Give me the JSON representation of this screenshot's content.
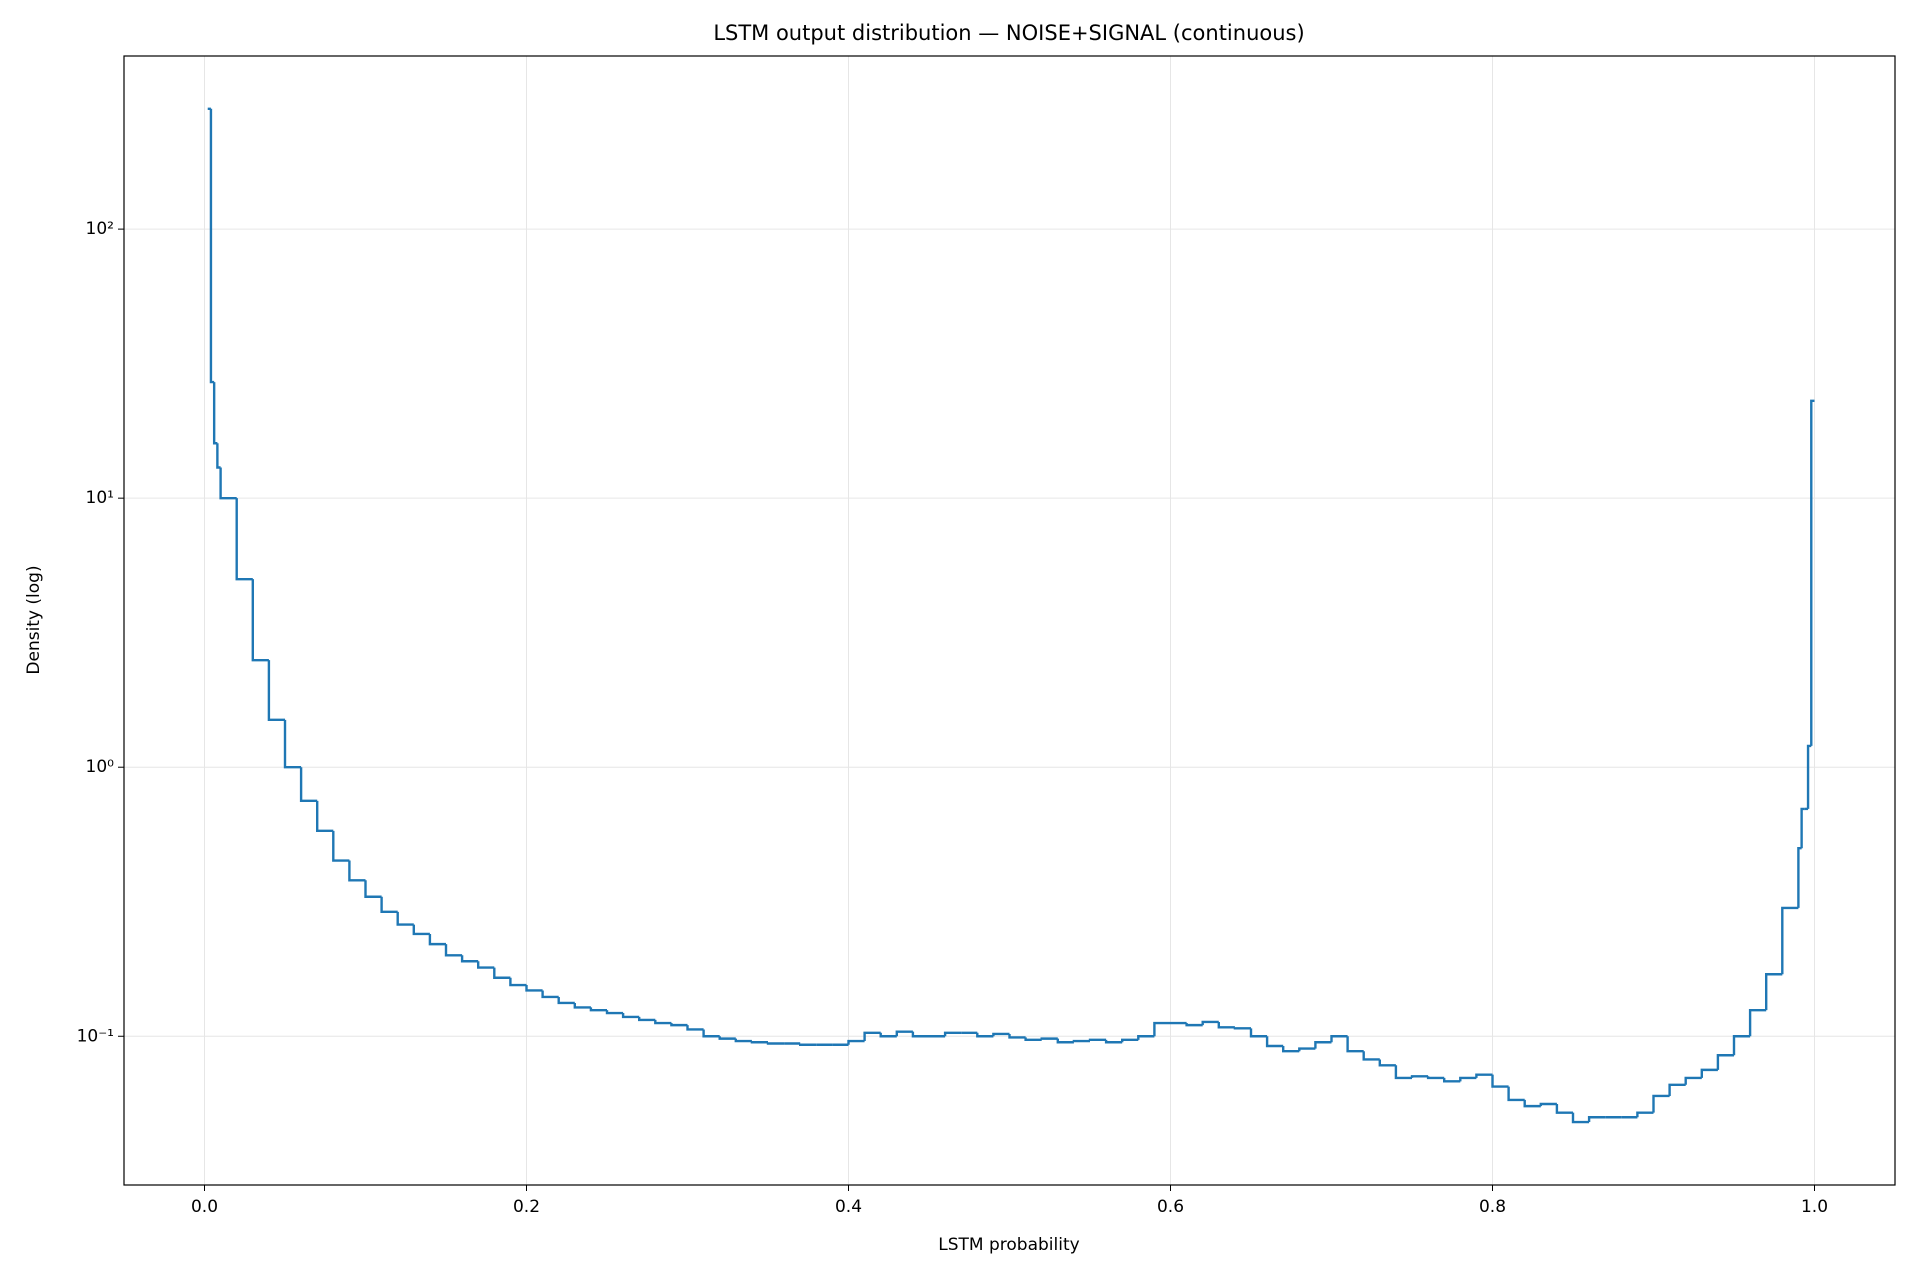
{
  "chart_data": {
    "type": "histogram",
    "histtype": "step",
    "title": "LSTM output distribution — NOISE+SIGNAL (continuous)",
    "x_label": "LSTM probability",
    "y_label": "Density (log)",
    "color": "#1f77b4",
    "y_scale": "log",
    "grid": true,
    "xlim": [
      -0.05,
      1.05
    ],
    "ylim": [
      0.028,
      440
    ],
    "xticks": [
      {
        "value": 0,
        "label": "0.0"
      },
      0.2,
      0.4,
      0.6,
      0.8,
      {
        "value": 1,
        "label": "1.0"
      }
    ],
    "yticks": [
      {
        "value": 0.1,
        "label": "10⁻¹"
      },
      {
        "value": 1,
        "label": "10⁰"
      },
      {
        "value": 10,
        "label": "10¹"
      },
      {
        "value": 100,
        "label": "10²"
      }
    ],
    "bins": [
      0.002,
      0.004,
      0.006,
      0.008,
      0.01,
      0.02,
      0.03,
      0.04,
      0.05,
      0.06,
      0.07,
      0.08,
      0.09,
      0.1,
      0.11,
      0.12,
      0.13,
      0.14,
      0.15,
      0.16,
      0.17,
      0.18,
      0.19,
      0.2,
      0.21,
      0.22,
      0.23,
      0.24,
      0.25,
      0.26,
      0.27,
      0.28,
      0.29,
      0.3,
      0.31,
      0.32,
      0.33,
      0.34,
      0.35,
      0.36,
      0.37,
      0.38,
      0.39,
      0.4,
      0.41,
      0.42,
      0.43,
      0.44,
      0.45,
      0.46,
      0.47,
      0.48,
      0.49,
      0.5,
      0.51,
      0.52,
      0.53,
      0.54,
      0.55,
      0.56,
      0.57,
      0.58,
      0.59,
      0.6,
      0.61,
      0.62,
      0.63,
      0.64,
      0.65,
      0.66,
      0.67,
      0.68,
      0.69,
      0.7,
      0.71,
      0.72,
      0.73,
      0.74,
      0.75,
      0.76,
      0.77,
      0.78,
      0.79,
      0.8,
      0.81,
      0.82,
      0.83,
      0.84,
      0.85,
      0.86,
      0.87,
      0.88,
      0.89,
      0.9,
      0.91,
      0.92,
      0.93,
      0.94,
      0.95,
      0.96,
      0.97,
      0.98,
      0.99,
      0.992,
      0.994,
      0.996,
      0.998,
      1.0
    ],
    "values": [
      280,
      27,
      16,
      13,
      10,
      5,
      2.5,
      1.5,
      1.0,
      0.75,
      0.58,
      0.45,
      0.38,
      0.33,
      0.29,
      0.26,
      0.24,
      0.22,
      0.2,
      0.19,
      0.18,
      0.165,
      0.155,
      0.148,
      0.14,
      0.133,
      0.128,
      0.125,
      0.122,
      0.118,
      0.115,
      0.112,
      0.11,
      0.106,
      0.1,
      0.098,
      0.096,
      0.095,
      0.094,
      0.094,
      0.093,
      0.093,
      0.093,
      0.096,
      0.103,
      0.1,
      0.104,
      0.1,
      0.1,
      0.103,
      0.103,
      0.1,
      0.102,
      0.099,
      0.097,
      0.098,
      0.095,
      0.096,
      0.097,
      0.095,
      0.097,
      0.1,
      0.112,
      0.112,
      0.11,
      0.113,
      0.108,
      0.107,
      0.1,
      0.092,
      0.088,
      0.09,
      0.095,
      0.1,
      0.088,
      0.082,
      0.078,
      0.07,
      0.071,
      0.07,
      0.068,
      0.07,
      0.072,
      0.065,
      0.058,
      0.055,
      0.056,
      0.052,
      0.048,
      0.05,
      0.05,
      0.05,
      0.052,
      0.06,
      0.066,
      0.07,
      0.075,
      0.085,
      0.1,
      0.125,
      0.17,
      0.3,
      0.5,
      0.7,
      0.7,
      1.2,
      23
    ]
  }
}
